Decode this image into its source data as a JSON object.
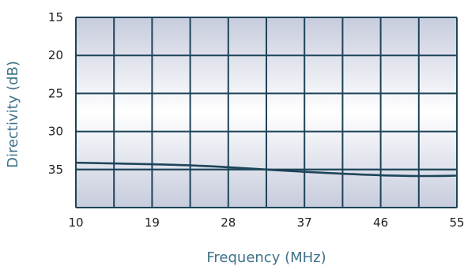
{
  "chart_data": {
    "type": "line",
    "title": "",
    "xlabel": "Frequency (MHz)",
    "ylabel": "Directivity (dB)",
    "xlim": [
      10,
      55
    ],
    "ylim": [
      15,
      40
    ],
    "y_reversed": true,
    "x_ticks": [
      "10",
      "19",
      "28",
      "37",
      "46",
      "55"
    ],
    "y_ticks": [
      "15",
      "20",
      "25",
      "30",
      "35"
    ],
    "grid": true,
    "legend": "none",
    "colors": {
      "line": "#1d4459",
      "grid": "#1d4459",
      "plot_top": "#ffffff",
      "plot_bottom": "#c7ccdd"
    },
    "series": [
      {
        "x": [
          10,
          14.5,
          19,
          23.5,
          28,
          32.5,
          37,
          41.5,
          46,
          50.5,
          55
        ],
        "values": [
          34.1,
          34.2,
          34.3,
          34.45,
          34.7,
          35.0,
          35.3,
          35.55,
          35.75,
          35.85,
          35.8
        ]
      },
      {
        "x": [
          10,
          55
        ],
        "values": [
          35.0,
          35.0
        ]
      }
    ]
  }
}
